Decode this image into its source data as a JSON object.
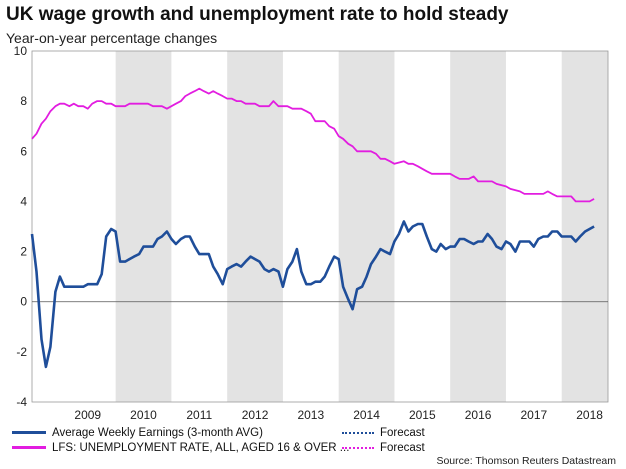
{
  "chart_data": {
    "type": "line",
    "title": "UK wage growth and unemployment rate to hold steady",
    "subtitle": "Year-on-year percentage changes",
    "ylim": [
      -4,
      10
    ],
    "yticks": [
      "10",
      "8",
      "6",
      "4",
      "2",
      "0",
      "-2",
      "-4"
    ],
    "xlim": [
      2008.5,
      2018.83
    ],
    "year_labels": [
      "2009",
      "2010",
      "2011",
      "2012",
      "2013",
      "2014",
      "2015",
      "2016",
      "2017",
      "2018"
    ],
    "shaded_years": [
      2010,
      2012,
      2014,
      2016,
      2018
    ],
    "series": [
      {
        "name": "Average Weekly Earnings (3-month AVG)",
        "color": "#1f4e9a",
        "forecast_label": "Forecast",
        "points": [
          [
            2008.5,
            2.7
          ],
          [
            2008.58,
            1.2
          ],
          [
            2008.67,
            -1.5
          ],
          [
            2008.75,
            -2.6
          ],
          [
            2008.83,
            -1.8
          ],
          [
            2008.92,
            0.4
          ],
          [
            2009.0,
            1.0
          ],
          [
            2009.08,
            0.6
          ],
          [
            2009.25,
            0.6
          ],
          [
            2009.42,
            0.6
          ],
          [
            2009.5,
            0.7
          ],
          [
            2009.67,
            0.7
          ],
          [
            2009.75,
            1.1
          ],
          [
            2009.83,
            2.6
          ],
          [
            2009.92,
            2.9
          ],
          [
            2010.0,
            2.8
          ],
          [
            2010.08,
            1.6
          ],
          [
            2010.17,
            1.6
          ],
          [
            2010.33,
            1.8
          ],
          [
            2010.42,
            1.9
          ],
          [
            2010.5,
            2.2
          ],
          [
            2010.67,
            2.2
          ],
          [
            2010.75,
            2.5
          ],
          [
            2010.83,
            2.6
          ],
          [
            2010.92,
            2.8
          ],
          [
            2011.0,
            2.5
          ],
          [
            2011.08,
            2.3
          ],
          [
            2011.17,
            2.5
          ],
          [
            2011.25,
            2.6
          ],
          [
            2011.33,
            2.6
          ],
          [
            2011.42,
            2.2
          ],
          [
            2011.5,
            1.9
          ],
          [
            2011.67,
            1.9
          ],
          [
            2011.75,
            1.4
          ],
          [
            2011.83,
            1.1
          ],
          [
            2011.92,
            0.7
          ],
          [
            2012.0,
            1.3
          ],
          [
            2012.08,
            1.4
          ],
          [
            2012.17,
            1.5
          ],
          [
            2012.25,
            1.4
          ],
          [
            2012.33,
            1.6
          ],
          [
            2012.42,
            1.8
          ],
          [
            2012.5,
            1.7
          ],
          [
            2012.58,
            1.6
          ],
          [
            2012.67,
            1.3
          ],
          [
            2012.75,
            1.2
          ],
          [
            2012.83,
            1.3
          ],
          [
            2012.92,
            1.2
          ],
          [
            2013.0,
            0.6
          ],
          [
            2013.08,
            1.3
          ],
          [
            2013.17,
            1.6
          ],
          [
            2013.25,
            2.1
          ],
          [
            2013.33,
            1.2
          ],
          [
            2013.42,
            0.7
          ],
          [
            2013.5,
            0.7
          ],
          [
            2013.58,
            0.8
          ],
          [
            2013.67,
            0.8
          ],
          [
            2013.75,
            1.0
          ],
          [
            2013.83,
            1.4
          ],
          [
            2013.92,
            1.8
          ],
          [
            2014.0,
            1.7
          ],
          [
            2014.08,
            0.6
          ],
          [
            2014.17,
            0.1
          ],
          [
            2014.25,
            -0.3
          ],
          [
            2014.33,
            0.5
          ],
          [
            2014.42,
            0.6
          ],
          [
            2014.5,
            1.0
          ],
          [
            2014.58,
            1.5
          ],
          [
            2014.67,
            1.8
          ],
          [
            2014.75,
            2.1
          ],
          [
            2014.83,
            2.0
          ],
          [
            2014.92,
            1.9
          ],
          [
            2015.0,
            2.4
          ],
          [
            2015.08,
            2.7
          ],
          [
            2015.17,
            3.2
          ],
          [
            2015.25,
            2.8
          ],
          [
            2015.33,
            3.0
          ],
          [
            2015.42,
            3.1
          ],
          [
            2015.5,
            3.1
          ],
          [
            2015.58,
            2.6
          ],
          [
            2015.67,
            2.1
          ],
          [
            2015.75,
            2.0
          ],
          [
            2015.83,
            2.3
          ],
          [
            2015.92,
            2.1
          ],
          [
            2016.0,
            2.2
          ],
          [
            2016.08,
            2.2
          ],
          [
            2016.17,
            2.5
          ],
          [
            2016.25,
            2.5
          ],
          [
            2016.33,
            2.4
          ],
          [
            2016.42,
            2.3
          ],
          [
            2016.5,
            2.4
          ],
          [
            2016.58,
            2.4
          ],
          [
            2016.67,
            2.7
          ],
          [
            2016.75,
            2.5
          ],
          [
            2016.83,
            2.2
          ],
          [
            2016.92,
            2.1
          ],
          [
            2017.0,
            2.4
          ],
          [
            2017.08,
            2.3
          ],
          [
            2017.17,
            2.0
          ],
          [
            2017.25,
            2.4
          ],
          [
            2017.33,
            2.4
          ],
          [
            2017.42,
            2.4
          ],
          [
            2017.5,
            2.2
          ],
          [
            2017.58,
            2.5
          ],
          [
            2017.67,
            2.6
          ],
          [
            2017.75,
            2.6
          ],
          [
            2017.83,
            2.8
          ],
          [
            2017.92,
            2.8
          ],
          [
            2018.0,
            2.6
          ],
          [
            2018.17,
            2.6
          ],
          [
            2018.25,
            2.4
          ],
          [
            2018.33,
            2.6
          ],
          [
            2018.42,
            2.8
          ],
          [
            2018.5,
            2.9
          ],
          [
            2018.58,
            3.0
          ]
        ]
      },
      {
        "name": "LFS: UNEMPLOYMENT RATE, ALL, AGED 16 & OVER ...",
        "color": "#e21de0",
        "forecast_label": "Forecast",
        "points": [
          [
            2008.5,
            6.5
          ],
          [
            2008.58,
            6.7
          ],
          [
            2008.67,
            7.1
          ],
          [
            2008.75,
            7.3
          ],
          [
            2008.83,
            7.6
          ],
          [
            2008.92,
            7.8
          ],
          [
            2009.0,
            7.9
          ],
          [
            2009.08,
            7.9
          ],
          [
            2009.17,
            7.8
          ],
          [
            2009.25,
            7.9
          ],
          [
            2009.33,
            7.8
          ],
          [
            2009.42,
            7.8
          ],
          [
            2009.5,
            7.7
          ],
          [
            2009.58,
            7.9
          ],
          [
            2009.67,
            8.0
          ],
          [
            2009.75,
            8.0
          ],
          [
            2009.83,
            7.9
          ],
          [
            2009.92,
            7.9
          ],
          [
            2010.0,
            7.8
          ],
          [
            2010.17,
            7.8
          ],
          [
            2010.25,
            7.9
          ],
          [
            2010.5,
            7.9
          ],
          [
            2010.58,
            7.9
          ],
          [
            2010.67,
            7.8
          ],
          [
            2010.83,
            7.8
          ],
          [
            2010.92,
            7.7
          ],
          [
            2011.0,
            7.8
          ],
          [
            2011.08,
            7.9
          ],
          [
            2011.17,
            8.0
          ],
          [
            2011.25,
            8.2
          ],
          [
            2011.33,
            8.3
          ],
          [
            2011.42,
            8.4
          ],
          [
            2011.5,
            8.5
          ],
          [
            2011.58,
            8.4
          ],
          [
            2011.67,
            8.3
          ],
          [
            2011.75,
            8.4
          ],
          [
            2011.83,
            8.3
          ],
          [
            2011.92,
            8.2
          ],
          [
            2012.0,
            8.1
          ],
          [
            2012.08,
            8.1
          ],
          [
            2012.17,
            8.0
          ],
          [
            2012.25,
            8.0
          ],
          [
            2012.33,
            7.9
          ],
          [
            2012.5,
            7.9
          ],
          [
            2012.58,
            7.8
          ],
          [
            2012.75,
            7.8
          ],
          [
            2012.83,
            8.0
          ],
          [
            2012.92,
            7.8
          ],
          [
            2013.0,
            7.8
          ],
          [
            2013.08,
            7.8
          ],
          [
            2013.17,
            7.7
          ],
          [
            2013.33,
            7.7
          ],
          [
            2013.42,
            7.6
          ],
          [
            2013.5,
            7.5
          ],
          [
            2013.58,
            7.2
          ],
          [
            2013.75,
            7.2
          ],
          [
            2013.83,
            7.0
          ],
          [
            2013.92,
            6.9
          ],
          [
            2014.0,
            6.6
          ],
          [
            2014.08,
            6.5
          ],
          [
            2014.17,
            6.3
          ],
          [
            2014.25,
            6.2
          ],
          [
            2014.33,
            6.0
          ],
          [
            2014.5,
            6.0
          ],
          [
            2014.58,
            6.0
          ],
          [
            2014.67,
            5.9
          ],
          [
            2014.75,
            5.7
          ],
          [
            2014.83,
            5.7
          ],
          [
            2014.92,
            5.6
          ],
          [
            2015.0,
            5.5
          ],
          [
            2015.17,
            5.6
          ],
          [
            2015.25,
            5.5
          ],
          [
            2015.33,
            5.5
          ],
          [
            2015.42,
            5.4
          ],
          [
            2015.5,
            5.3
          ],
          [
            2015.58,
            5.2
          ],
          [
            2015.67,
            5.1
          ],
          [
            2015.92,
            5.1
          ],
          [
            2016.0,
            5.1
          ],
          [
            2016.08,
            5.0
          ],
          [
            2016.17,
            4.9
          ],
          [
            2016.33,
            4.9
          ],
          [
            2016.42,
            5.0
          ],
          [
            2016.5,
            4.8
          ],
          [
            2016.67,
            4.8
          ],
          [
            2016.75,
            4.8
          ],
          [
            2016.83,
            4.7
          ],
          [
            2017.0,
            4.6
          ],
          [
            2017.08,
            4.5
          ],
          [
            2017.25,
            4.4
          ],
          [
            2017.33,
            4.3
          ],
          [
            2017.67,
            4.3
          ],
          [
            2017.75,
            4.4
          ],
          [
            2017.83,
            4.3
          ],
          [
            2017.92,
            4.2
          ],
          [
            2018.0,
            4.2
          ],
          [
            2018.17,
            4.2
          ],
          [
            2018.25,
            4.0
          ],
          [
            2018.42,
            4.0
          ],
          [
            2018.5,
            4.0
          ],
          [
            2018.58,
            4.1
          ]
        ]
      }
    ],
    "source": "Source: Thomson Reuters Datastream"
  }
}
